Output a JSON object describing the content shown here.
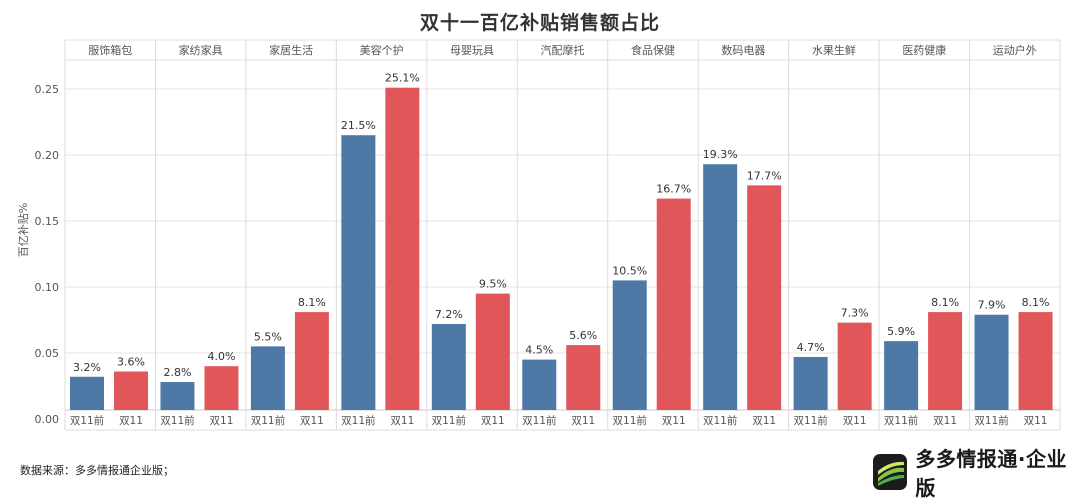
{
  "source_note": "数据来源：多多情报通企业版；",
  "brand": {
    "name": "多多情报通·企业版",
    "logo_icon": "ppt-logo-icon"
  },
  "colors": {
    "before": "#4E79A7",
    "during": "#E15759",
    "grid": "#e6e6e6",
    "separator": "#dcdcdc",
    "text": "#555555"
  },
  "chart_data": {
    "type": "bar",
    "title": "双十一百亿补贴销售额占比",
    "ylabel": "百亿补贴%",
    "ylim": [
      0,
      0.28
    ],
    "yticks": [
      "0.00",
      "0.05",
      "0.10",
      "0.15",
      "0.20",
      "0.25"
    ],
    "ytick_values": [
      0,
      0.05,
      0.1,
      0.15,
      0.2,
      0.25
    ],
    "grid": true,
    "sub_categories": [
      "双11前",
      "双11"
    ],
    "categories": [
      "服饰箱包",
      "家纺家具",
      "家居生活",
      "美容个护",
      "母婴玩具",
      "汽配摩托",
      "食品保健",
      "数码电器",
      "水果生鲜",
      "医药健康",
      "运动户外"
    ],
    "series": [
      {
        "values": [
          0.032,
          0.028,
          0.055,
          0.215,
          0.072,
          0.045,
          0.105,
          0.193,
          0.047,
          0.059,
          0.079
        ],
        "labels": [
          "3.2%",
          "2.8%",
          "5.5%",
          "21.5%",
          "7.2%",
          "4.5%",
          "10.5%",
          "19.3%",
          "4.7%",
          "5.9%",
          "7.9%"
        ]
      },
      {
        "values": [
          0.036,
          0.04,
          0.081,
          0.251,
          0.095,
          0.056,
          0.167,
          0.177,
          0.073,
          0.081,
          0.081
        ],
        "labels": [
          "3.6%",
          "4.0%",
          "8.1%",
          "25.1%",
          "9.5%",
          "5.6%",
          "16.7%",
          "17.7%",
          "7.3%",
          "8.1%",
          "8.1%"
        ]
      }
    ]
  }
}
